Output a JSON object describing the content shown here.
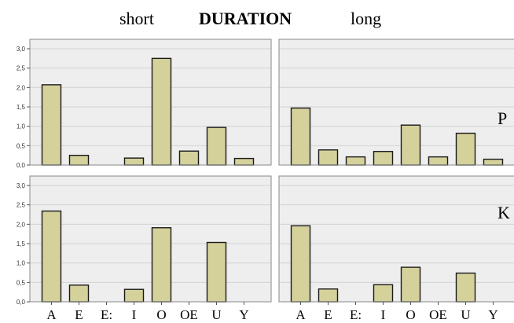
{
  "header": {
    "left_label": "short",
    "title": "DURATION",
    "right_label": "long"
  },
  "row_labels": [
    "P",
    "K"
  ],
  "colors": {
    "bar_fill": "#d4d19b",
    "bar_stroke": "#1a1a1a",
    "plot_background": "#eeeeee",
    "gridline": "#d2d2d2",
    "frame": "#888888"
  },
  "chart_data": {
    "type": "bar",
    "layout": "2x2 facet grid",
    "columns": [
      "short",
      "long"
    ],
    "rows": [
      "P",
      "K"
    ],
    "categories": [
      "A",
      "E",
      "E:",
      "I",
      "O",
      "OE",
      "U",
      "Y"
    ],
    "ylim": [
      0,
      3
    ],
    "yticks": [
      "0,0",
      "0,5",
      "1,0",
      "1,5",
      "2,0",
      "2,5",
      "3,0"
    ],
    "grid": true,
    "panels": [
      {
        "row": "P",
        "column": "short",
        "values": [
          2.07,
          0.25,
          0,
          0.18,
          2.75,
          0.36,
          0.97,
          0.17
        ]
      },
      {
        "row": "P",
        "column": "long",
        "values": [
          1.47,
          0.39,
          0.21,
          0.35,
          1.03,
          0.21,
          0.82,
          0.15
        ]
      },
      {
        "row": "K",
        "column": "short",
        "values": [
          2.34,
          0.43,
          0,
          0.32,
          1.91,
          0,
          1.53,
          0
        ]
      },
      {
        "row": "K",
        "column": "long",
        "values": [
          1.96,
          0.33,
          0,
          0.44,
          0.89,
          0,
          0.74,
          0
        ]
      }
    ]
  }
}
